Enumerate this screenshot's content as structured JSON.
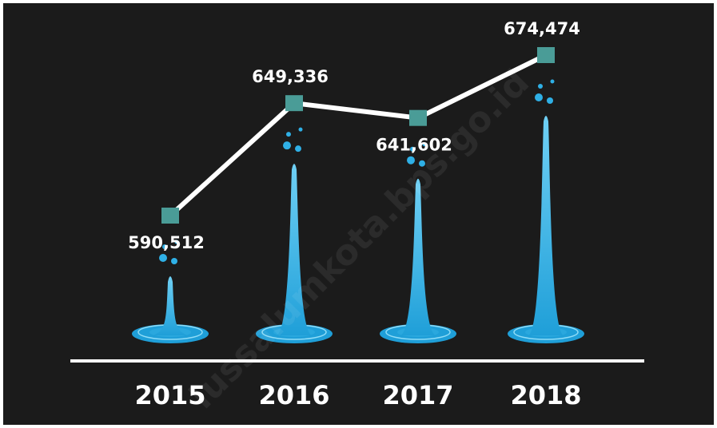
{
  "chart_data": {
    "type": "line",
    "categories": [
      "2015",
      "2016",
      "2017",
      "2018"
    ],
    "series": [
      {
        "name": null,
        "color": "#ffffff",
        "marker_color": "#4a9c97",
        "values": [
          590512,
          649336,
          641602,
          674474
        ],
        "value_labels": [
          "590,512",
          "649,336",
          "641,602",
          "674,474"
        ]
      }
    ],
    "watermark": "lussalumkota.bps.go.id"
  }
}
